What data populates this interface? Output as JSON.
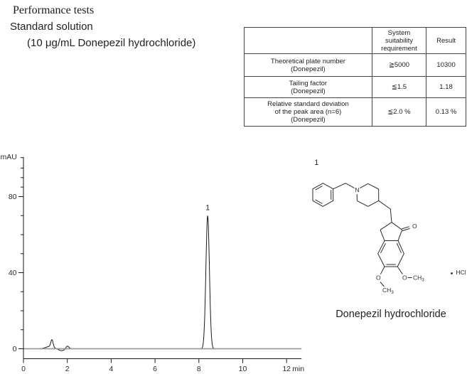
{
  "header": {
    "line1": "Performance tests",
    "line2": "Standard solution",
    "line3": "(10 μg/mL Donepezil hydrochloride)"
  },
  "table": {
    "col_headers": [
      "",
      "System suitability requirement",
      "Result"
    ],
    "rows": [
      {
        "param_lines": [
          "Theoretical plate number",
          "(Donepezil)"
        ],
        "requirement": "≧5000",
        "result": "10300"
      },
      {
        "param_lines": [
          "Tailing factor",
          "(Donepezil)"
        ],
        "requirement": "≦1.5",
        "result": "1.18"
      },
      {
        "param_lines": [
          "Relative standard deviation",
          "of the peak area (n=6)",
          "(Donepezil)"
        ],
        "requirement": "≦2.0 %",
        "result": "0.13 %"
      }
    ]
  },
  "chart_data": {
    "type": "line",
    "title": "",
    "ylabel": "mAU",
    "xlabel": "min",
    "xlim": [
      0,
      12.68
    ],
    "ylim": [
      0,
      100.8
    ],
    "xticks": [
      0,
      2,
      4,
      6,
      8,
      10,
      12
    ],
    "yticks_major": [
      0,
      40,
      80
    ],
    "yticks_minor": [
      10,
      20,
      30,
      50,
      60,
      70,
      85,
      90,
      95,
      100.5
    ],
    "grid": "baseline-only",
    "legend": "none",
    "sample": "Standard solution, 10 μg/mL Donepezil hydrochloride",
    "peaks": [
      {
        "rt_min": 1.2,
        "height_mau": 1.2,
        "sigma_min": 0.18,
        "label": ""
      },
      {
        "rt_min": 1.3,
        "height_mau": 3.8,
        "sigma_min": 0.05,
        "label": ""
      },
      {
        "rt_min": 1.75,
        "height_mau": -1.0,
        "sigma_min": 0.15,
        "label": ""
      },
      {
        "rt_min": 2.0,
        "height_mau": 1.6,
        "sigma_min": 0.07,
        "label": ""
      },
      {
        "rt_min": 8.4,
        "height_mau": 70.0,
        "sigma_min": 0.08,
        "label": "1"
      }
    ],
    "baseline_mau": 0,
    "colors": {
      "trace": "#1a1a1a",
      "baseline": "#9a9a9a",
      "axis": "#1a1a1a"
    }
  },
  "structure": {
    "peak_label": "1",
    "caption": "Donepezil hydrochloride",
    "atom_n": "N",
    "atom_o_carbonyl": "O",
    "atom_o_left": "O",
    "atom_o_right": "O",
    "ch": "CH",
    "sub3": "3",
    "salt": "HCl"
  }
}
